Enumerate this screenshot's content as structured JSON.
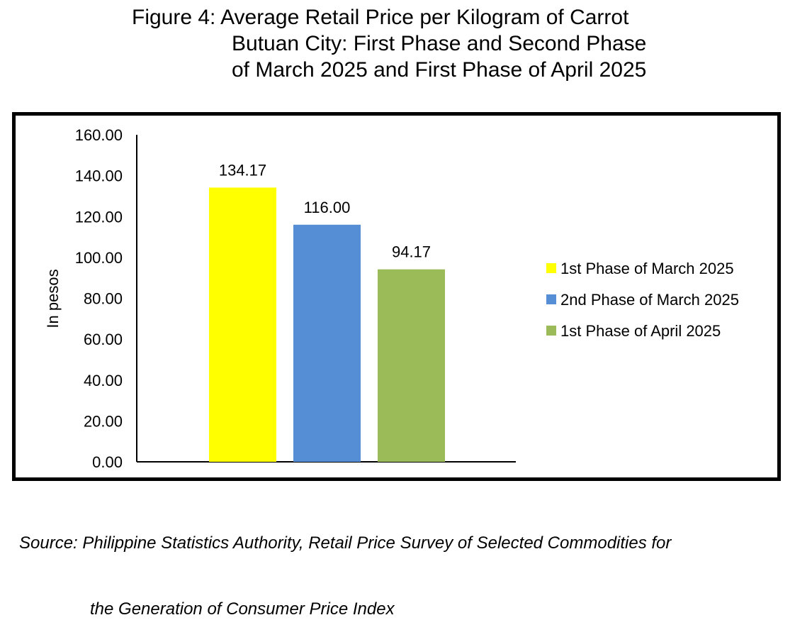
{
  "title_lines": [
    "Figure 4: Average Retail Price per Kilogram of Carrot",
    "Butuan City: First Phase and Second Phase",
    "of March 2025 and First Phase of April 2025"
  ],
  "source_lines": [
    "Source: Philippine Statistics Authority, Retail Price Survey of Selected Commodities for",
    "the Generation of Consumer Price Index"
  ],
  "chart_data": {
    "type": "bar",
    "categories": [
      "1st Phase of March 2025",
      "2nd Phase of March 2025",
      "1st Phase of April 2025"
    ],
    "values": [
      134.17,
      116.0,
      94.17
    ],
    "data_labels": [
      "134.17",
      "116.00",
      "94.17"
    ],
    "colors": [
      "#ffff00",
      "#558ed5",
      "#9bbb59"
    ],
    "ylabel": "In pesos",
    "xlabel": "",
    "ylim": [
      0,
      160
    ],
    "yticks": [
      "0.00",
      "20.00",
      "40.00",
      "60.00",
      "80.00",
      "100.00",
      "120.00",
      "140.00",
      "160.00"
    ],
    "grid": false,
    "legend": {
      "position": "right",
      "entries": [
        "1st Phase of March 2025",
        "2nd Phase of March 2025",
        "1st Phase of April 2025"
      ]
    }
  }
}
